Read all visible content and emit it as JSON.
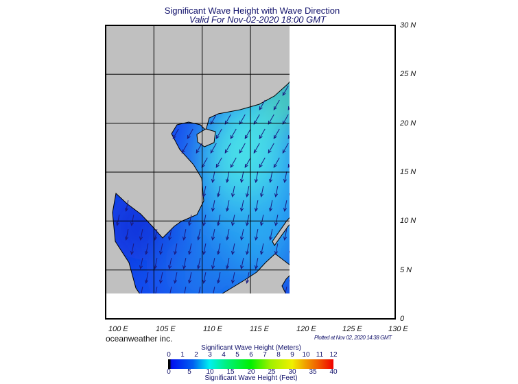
{
  "title": "Significant Wave Height with Wave Direction",
  "subtitle": "Valid For Nov-02-2020 18:00 GMT",
  "lon_labels": [
    "100 E",
    "105 E",
    "110 E",
    "115 E",
    "120 E",
    "125 E",
    "130 E"
  ],
  "lat_labels": [
    "30 N",
    "25 N",
    "20 N",
    "15 N",
    "10 N",
    "5 N",
    "0"
  ],
  "credit": "oceanweather inc.",
  "plotted": "Plotted at Nov 02, 2020 14:38 GMT",
  "legend": {
    "meters_title": "Significant Wave Height (Meters)",
    "meters_ticks": [
      "0",
      "1",
      "2",
      "3",
      "4",
      "5",
      "6",
      "7",
      "8",
      "9",
      "10",
      "11",
      "12"
    ],
    "feet_ticks": [
      "0",
      "5",
      "10",
      "15",
      "20",
      "25",
      "30",
      "35",
      "40"
    ],
    "feet_title": "Significant Wave Height (Feet)"
  },
  "colors": {
    "arrow": "#1a1a80",
    "land": "#c0c0c0",
    "ocean": "#1448ee"
  }
}
